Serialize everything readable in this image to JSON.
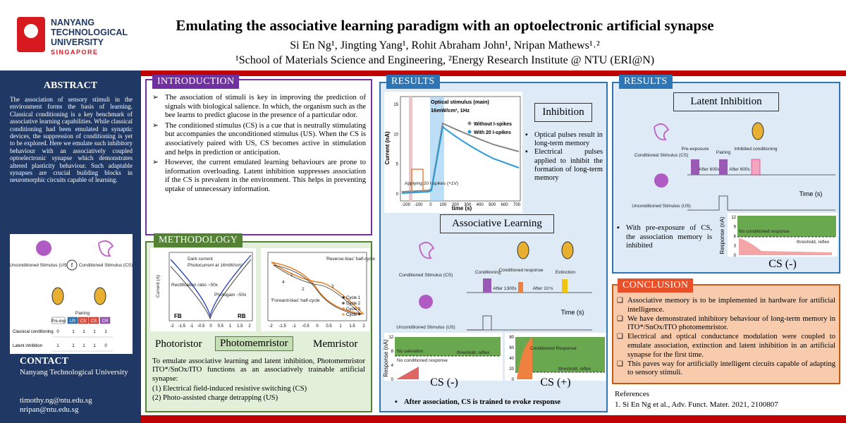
{
  "header": {
    "logo": [
      "NANYANG",
      "TECHNOLOGICAL",
      "UNIVERSITY",
      "SINGAPORE"
    ],
    "title": "Emulating the associative learning paradigm with an optoelectronic artificial synapse",
    "authors": "Si En Ng¹, Jingting Yang¹, Rohit Abraham John¹, Nripan Mathews¹˒²",
    "affiliations": "¹School of Materials Science and Engineering, ²Energy Research Institute @ NTU (ERI@N)"
  },
  "abstract": {
    "heading": "ABSTRACT",
    "text": "The association of sensory stimuli in the environment forms the basis of learning. Classical conditioning is a key benchmark of associative learning capabilities. While classical conditioning had been emulated in synaptic devices, the suppression of conditioning is yet to be explored. Here we emulate such inhibitory behaviour with an associatively coupled optoelectronic synapse which demonstrates altered plasticity behaviour. Such adaptable synapses are crucial building blocks in neuromorphic circuits capable of learning.",
    "figure": {
      "us": "Unconditioned Stimulus (US)",
      "cs": "Conditioned Stimulus (CS)",
      "f": "f",
      "pairing": "Pairing",
      "columns": [
        "Pre-exp",
        "US",
        "CS",
        "CS",
        "CR"
      ],
      "rows": [
        {
          "label": "Classical conditioning",
          "cells": [
            "0",
            "1",
            "1",
            "1",
            "1"
          ]
        },
        {
          "label": "Latent inhibition",
          "cells": [
            "1",
            "1",
            "1",
            "1",
            "0"
          ]
        }
      ]
    }
  },
  "contact": {
    "heading": "CONTACT",
    "lines": [
      "Nanyang Technological University",
      "timothy.ng@ntu.edu.sg",
      "nripan@ntu.edu.sg"
    ]
  },
  "introduction": {
    "heading": "INTRODUCTION",
    "bullets": [
      "The association of stimuli is key in improving the prediction of signals with biological salience. In which, the organism such as the bee learns to predict glucose in the presence of a particular odor.",
      "The conditioned stimulus (CS) is a cue that is neutrally stimulating but accompanies the unconditioned stimulus (US). When the CS is associatively paired with US, CS becomes active in stimulation and helps in prediction or anticipation.",
      "However, the current emulated learning behaviours are prone to information overloading. Latent inhibition suppresses association if the CS is prevalent in the environment. This helps in preventing uptake of unnecessary information."
    ]
  },
  "methodology": {
    "heading": "METHODOLOGY",
    "plot_1": {
      "y_label": "Current (A)",
      "legend": [
        "Dark current",
        "Photocurrent at 16mW/cm²"
      ],
      "rectification": "Rectification ratio ~50x",
      "photogain": "Photogain ~50x",
      "fb": "FB",
      "rb": "RB",
      "xticks": [
        -2,
        -1.5,
        -1,
        -0.5,
        0,
        0.5,
        1,
        1.5,
        2
      ]
    },
    "plot_2": {
      "reverse": "'Reverse-bias' half-cycle",
      "forward": "'Forward-bias' half-cycle",
      "cycles": [
        "Cycle 1",
        "Cycle 2",
        "Cycle 3",
        "Cycle 4"
      ],
      "steps": [
        "1",
        "2",
        "3",
        "4"
      ],
      "xticks": [
        -2,
        -1.5,
        -1,
        -0.5,
        0,
        0.5,
        1,
        1.5,
        2
      ]
    },
    "devices": [
      "Photoristor",
      "Photomemristor",
      "Memristor"
    ],
    "text": "To emulate associative learning and latent inhibition, Photomemristor ITO*/SnOx/ITO functions as an associatively trainable artificial synapse:",
    "items": [
      "(1)  Electrical field-induced resistive switching (CS)",
      "(2)  Photo-assisted charge detrapping (US)"
    ]
  },
  "results_1": {
    "heading": "RESULTS",
    "plot": {
      "title": "Optical stimulus (main)",
      "subtitle": "16mW/cm², 1Hz",
      "legend": [
        "Without I-spikes",
        "With 20 I-spikes"
      ],
      "note": "Applying 20 I-spikes (+1V)",
      "y_label": "Current (nA)",
      "x_label": "time (s)",
      "xticks": [
        -200,
        -100,
        0,
        100,
        200,
        300,
        400,
        500,
        600,
        700
      ],
      "yticks": [
        0,
        5,
        10,
        15
      ]
    },
    "inhibition": "Inhibition",
    "bullets": [
      "Optical pulses result in long-term memory",
      "Electrical pulses applied to inhibit the formation of long-term memory"
    ],
    "associative": "Associative Learning",
    "diagram": {
      "cs": "Conditioned Stimulus (CS)",
      "us": "Unconditioned Stimulus (US)",
      "conditioning": "Conditioning",
      "response": "Conditioned response",
      "extinction": "Extinction",
      "after_1": "After 1300s",
      "after_2": "After 10⁴s",
      "time": "Time (s)"
    },
    "response_1": {
      "y_label": "Response (nA)",
      "yticks": [
        12,
        8,
        4,
        0
      ],
      "no_salivation": "No salivation",
      "threshold": "threshold, reflex",
      "no_response": "No conditioned response",
      "caption": "CS (-)"
    },
    "response_2": {
      "yticks": [
        80,
        60,
        40,
        20,
        0
      ],
      "response": "Conditioned Response",
      "threshold": "threshold, reflex",
      "caption": "CS (+)"
    },
    "bullet": "After association, CS is trained to evoke response"
  },
  "results_2": {
    "heading": "RESULTS",
    "latent": "Latent Inhibition",
    "diagram": {
      "cs": "Conditioned Stimulus (CS)",
      "us": "Unconditioned Stimulus (US)",
      "pre": "Pre-exposure",
      "pairing": "Pairing",
      "inhibited": "Inhibited conditioning",
      "after_1": "After 600s",
      "after_2": "After 600s",
      "time": "Time (s)"
    },
    "bullet": "With pre-exposure of CS, the association memory is inhibited",
    "plot": {
      "y_label": "Response (nA)",
      "yticks": [
        12,
        9,
        6,
        3,
        0
      ],
      "no_response": "No conditioned response",
      "threshold": "threshold, reflex",
      "caption": "CS (-)"
    }
  },
  "conclusion": {
    "heading": "CONCLUSION",
    "items": [
      "Associative memory is to be implemented in hardware for artificial intelligence.",
      "We have demonstrated inhibitory behaviour of long-term memory in ITO*/SnOx/ITO photomemristor.",
      "Electrical and optical conductance modulation were coupled to emulate association, extinction and latent inhibition in an artificial synapse for the first time.",
      "This paves way for artificially intelligent circuits capable of adapting to sensory stimuli."
    ]
  },
  "references": {
    "heading": "References",
    "items": [
      "1. Si En Ng et al., Adv. Funct. Mater. 2021, 2100807"
    ]
  }
}
